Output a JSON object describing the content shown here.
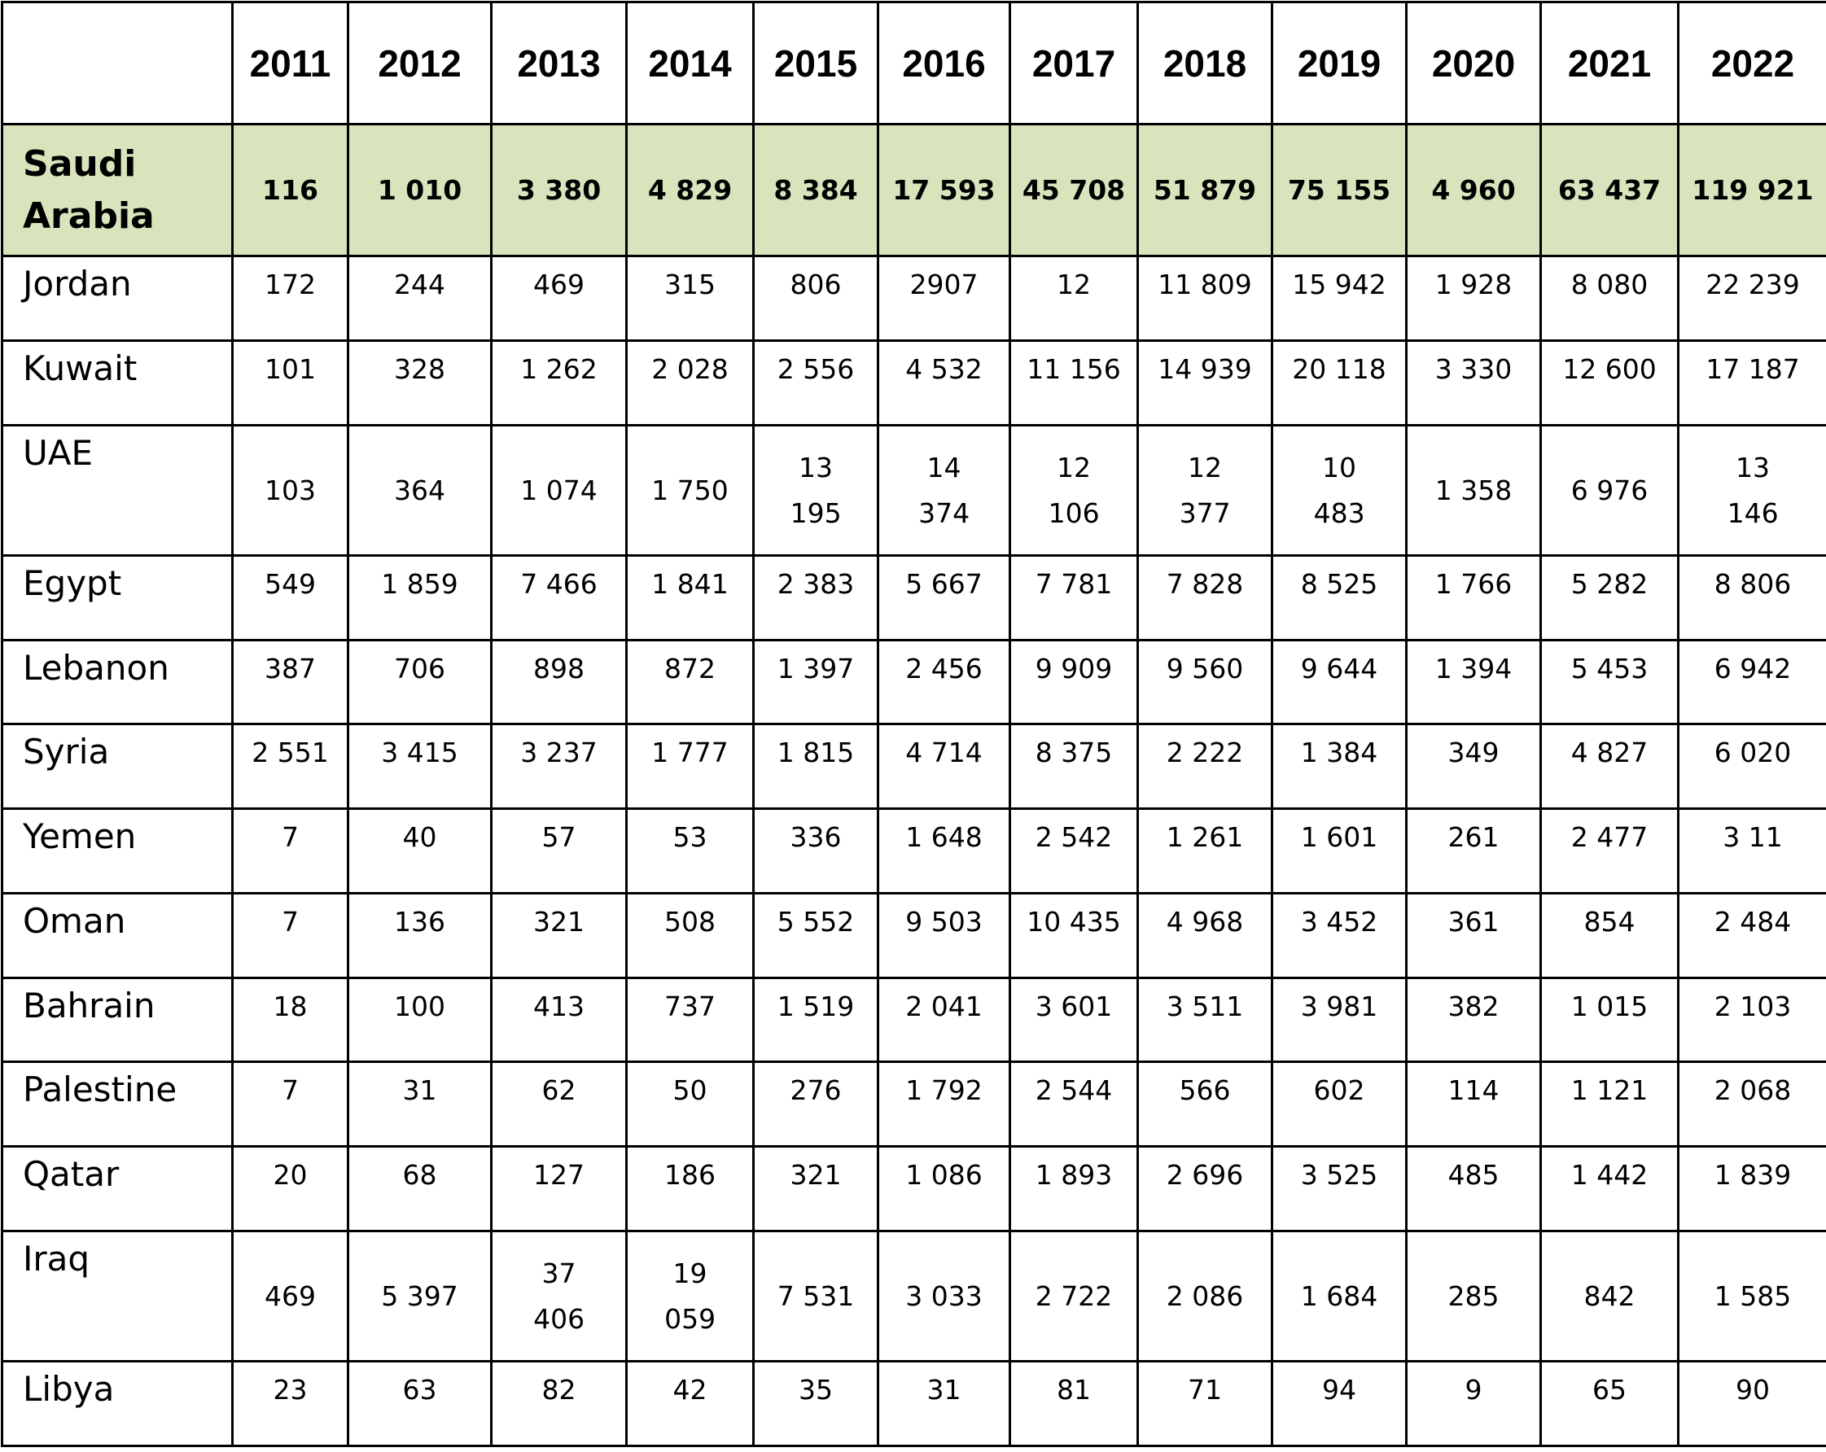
{
  "table": {
    "years": [
      "2011",
      "2012",
      "2013",
      "2014",
      "2015",
      "2016",
      "2017",
      "2018",
      "2019",
      "2020",
      "2021",
      "2022"
    ],
    "rows": [
      {
        "label": "Saudi Arabia",
        "values": [
          "116",
          "1 010",
          "3 380",
          "4 829",
          "8 384",
          "17 593",
          "45 708",
          "51 879",
          "75 155",
          "4 960",
          "63 437",
          "119 921"
        ]
      },
      {
        "label": "Jordan",
        "values": [
          "172",
          "244",
          "469",
          "315",
          "806",
          "2907",
          "12",
          "11 809",
          "15 942",
          "1 928",
          "8 080",
          "22 239"
        ]
      },
      {
        "label": "Kuwait",
        "values": [
          "101",
          "328",
          "1 262",
          "2 028",
          "2 556",
          "4 532",
          "11 156",
          "14 939",
          "20 118",
          "3 330",
          "12 600",
          "17 187"
        ]
      },
      {
        "label": "UAE",
        "values": [
          "103",
          "364",
          "1 074",
          "1 750",
          "13 195",
          "14 374",
          "12 106",
          "12 377",
          "10 483",
          "1 358",
          "6 976",
          "13 146"
        ]
      },
      {
        "label": "Egypt",
        "values": [
          "549",
          "1 859",
          "7 466",
          "1 841",
          "2 383",
          "5 667",
          "7 781",
          "7 828",
          "8 525",
          "1 766",
          "5 282",
          "8 806"
        ]
      },
      {
        "label": "Lebanon",
        "values": [
          "387",
          "706",
          "898",
          "872",
          "1 397",
          "2 456",
          "9 909",
          "9 560",
          "9 644",
          "1 394",
          "5 453",
          "6 942"
        ]
      },
      {
        "label": "Syria",
        "values": [
          "2 551",
          "3 415",
          "3 237",
          "1 777",
          "1 815",
          "4 714",
          "8 375",
          "2 222",
          "1 384",
          "349",
          "4 827",
          "6 020"
        ]
      },
      {
        "label": "Yemen",
        "values": [
          "7",
          "40",
          "57",
          "53",
          "336",
          "1 648",
          "2 542",
          "1 261",
          "1 601",
          "261",
          "2 477",
          "3 11"
        ]
      },
      {
        "label": "Oman",
        "values": [
          "7",
          "136",
          "321",
          "508",
          "5 552",
          "9 503",
          "10 435",
          "4 968",
          "3 452",
          "361",
          "854",
          "2 484"
        ]
      },
      {
        "label": "Bahrain",
        "values": [
          "18",
          "100",
          "413",
          "737",
          "1 519",
          "2 041",
          "3 601",
          "3 511",
          "3 981",
          "382",
          "1 015",
          "2 103"
        ]
      },
      {
        "label": "Palestine",
        "values": [
          "7",
          "31",
          "62",
          "50",
          "276",
          "1 792",
          "2 544",
          "566",
          "602",
          "114",
          "1 121",
          "2 068"
        ]
      },
      {
        "label": "Qatar",
        "values": [
          "20",
          "68",
          "127",
          "186",
          "321",
          "1 086",
          "1 893",
          "2 696",
          "3 525",
          "485",
          "1 442",
          "1 839"
        ]
      },
      {
        "label": "Iraq",
        "values": [
          "469",
          "5 397",
          "37 406",
          "19 059",
          "7 531",
          "3 033",
          "2 722",
          "2 086",
          "1 684",
          "285",
          "842",
          "1 585"
        ]
      },
      {
        "label": "Libya",
        "values": [
          "23",
          "63",
          "82",
          "42",
          "35",
          "31",
          "81",
          "71",
          "94",
          "9",
          "65",
          "90"
        ]
      }
    ]
  }
}
